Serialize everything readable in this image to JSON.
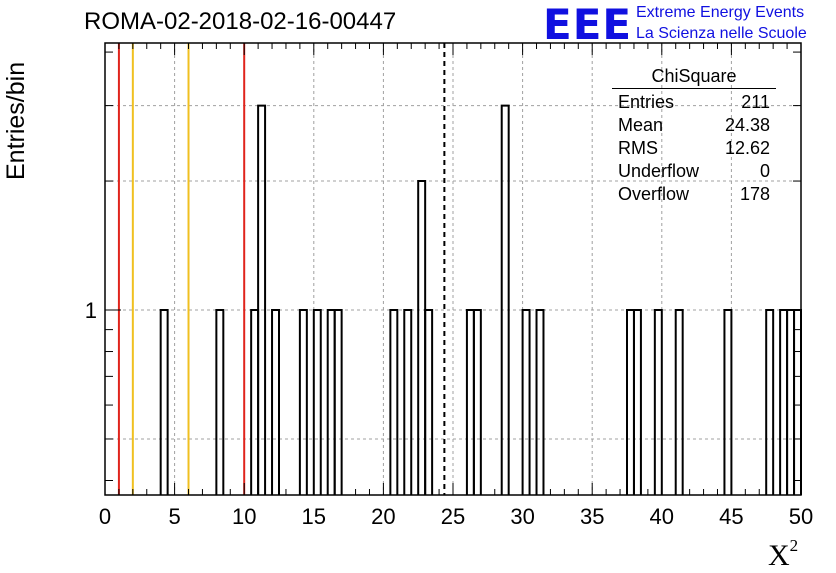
{
  "page": {
    "title": "ROMA-02-2018-02-16-00447",
    "ylabel": "Entries/bin",
    "xlabel_base": "X",
    "xlabel_sup": "2",
    "logo_text": "EEE",
    "logo_line1": "Extreme Energy Events",
    "logo_line2": "La Scienza nelle Scuole",
    "colors": {
      "brand": "#1010e0",
      "hist": "#000000",
      "red_line": "#e0241c",
      "yellow_line": "#f0c020",
      "grid": "#a0a0a0"
    }
  },
  "stats": {
    "header": "ChiSquare",
    "rows": [
      {
        "label": "Entries",
        "value": "211"
      },
      {
        "label": "Mean",
        "value": "24.38"
      },
      {
        "label": "RMS",
        "value": "12.62"
      },
      {
        "label": "Underflow",
        "value": "0"
      },
      {
        "label": "Overflow",
        "value": "178"
      }
    ]
  },
  "chart_data": {
    "type": "histogram",
    "title": "ROMA-02-2018-02-16-00447",
    "xlabel": "X²",
    "ylabel": "Entries/bin",
    "xlim": [
      0,
      50
    ],
    "ylim": [
      0.37,
      4.2
    ],
    "yscale": "log",
    "bin_width": 0.5,
    "x_ticks": [
      "0",
      "5",
      "10",
      "15",
      "20",
      "25",
      "30",
      "35",
      "40",
      "45",
      "50"
    ],
    "y_tick_labels": [
      "1"
    ],
    "grid": true,
    "bins": [
      {
        "x": 4.0,
        "count": 1
      },
      {
        "x": 8.0,
        "count": 1
      },
      {
        "x": 10.5,
        "count": 1
      },
      {
        "x": 11.0,
        "count": 3
      },
      {
        "x": 12.0,
        "count": 1
      },
      {
        "x": 14.0,
        "count": 1
      },
      {
        "x": 15.0,
        "count": 1
      },
      {
        "x": 16.0,
        "count": 1
      },
      {
        "x": 16.5,
        "count": 1
      },
      {
        "x": 20.5,
        "count": 1
      },
      {
        "x": 21.5,
        "count": 1
      },
      {
        "x": 22.5,
        "count": 2
      },
      {
        "x": 23.0,
        "count": 1
      },
      {
        "x": 26.0,
        "count": 1
      },
      {
        "x": 26.5,
        "count": 1
      },
      {
        "x": 28.5,
        "count": 3
      },
      {
        "x": 30.0,
        "count": 1
      },
      {
        "x": 31.0,
        "count": 1
      },
      {
        "x": 37.5,
        "count": 1
      },
      {
        "x": 38.0,
        "count": 1
      },
      {
        "x": 39.5,
        "count": 1
      },
      {
        "x": 41.0,
        "count": 1
      },
      {
        "x": 44.5,
        "count": 1
      },
      {
        "x": 47.5,
        "count": 1
      },
      {
        "x": 48.5,
        "count": 1
      },
      {
        "x": 49.0,
        "count": 1
      },
      {
        "x": 49.5,
        "count": 1
      }
    ],
    "mean_line": {
      "x": 24.38,
      "style": "dashed"
    },
    "vertical_lines": [
      {
        "x": 1.0,
        "color": "#e0241c"
      },
      {
        "x": 2.0,
        "color": "#f0c020"
      },
      {
        "x": 6.0,
        "color": "#f0c020"
      },
      {
        "x": 10.0,
        "color": "#e0241c"
      }
    ]
  }
}
